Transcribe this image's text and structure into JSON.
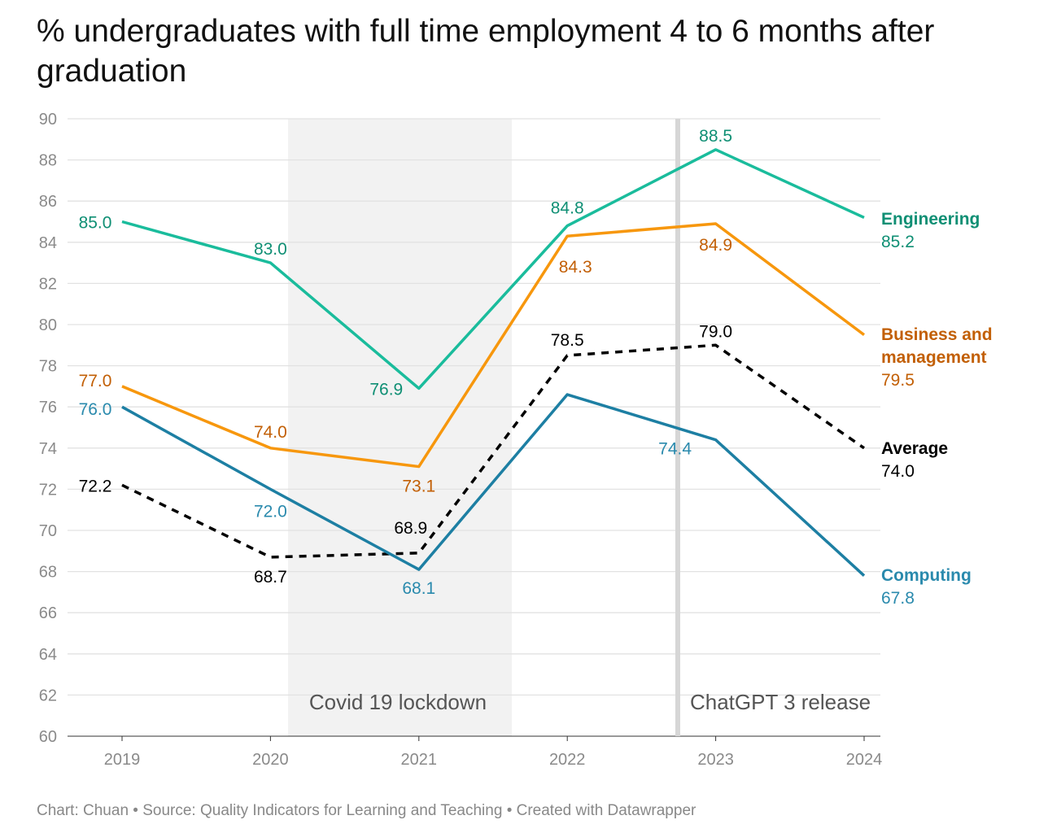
{
  "chart_data": {
    "type": "line",
    "title": "% undergraduates with full time employment 4 to 6 months after graduation",
    "x": [
      "2019",
      "2020",
      "2021",
      "2022",
      "2023",
      "2024"
    ],
    "ylim": [
      60,
      90
    ],
    "yticks": [
      60,
      62,
      64,
      66,
      68,
      70,
      72,
      74,
      76,
      78,
      80,
      82,
      84,
      86,
      88,
      90
    ],
    "grid": true,
    "legend": "direct labels at line ends (right)",
    "series": [
      {
        "name": "Engineering",
        "values": [
          85.0,
          83.0,
          76.9,
          84.8,
          88.5,
          85.2
        ],
        "color": "#1abc9c",
        "label_color": "#0f8f74",
        "dash": false
      },
      {
        "name": "Business and management",
        "values": [
          77.0,
          74.0,
          73.1,
          84.3,
          84.9,
          79.5
        ],
        "color": "#f7970d",
        "label_color": "#c25f05",
        "dash": false
      },
      {
        "name": "Average",
        "values": [
          72.2,
          68.7,
          68.9,
          78.5,
          79.0,
          74.0
        ],
        "color": "#000000",
        "label_color": "#000000",
        "dash": true
      },
      {
        "name": "Computing",
        "values": [
          76.0,
          72.0,
          68.1,
          76.6,
          74.4,
          67.8
        ],
        "color": "#1d7fa3",
        "label_color": "#2a8aad",
        "dash": false
      }
    ],
    "annotations": [
      {
        "text": "Covid 19 lockdown",
        "type": "shaded-range",
        "from": "2020",
        "to": "2021",
        "color": "#f2f2f2"
      },
      {
        "text": "ChatGPT 3 release",
        "type": "vertical-line",
        "at": "2022-2023",
        "color": "#d6d6d6"
      }
    ]
  },
  "footer": "Chart: Chuan • Source: Quality Indicators for Learning and Teaching • Created with Datawrapper"
}
